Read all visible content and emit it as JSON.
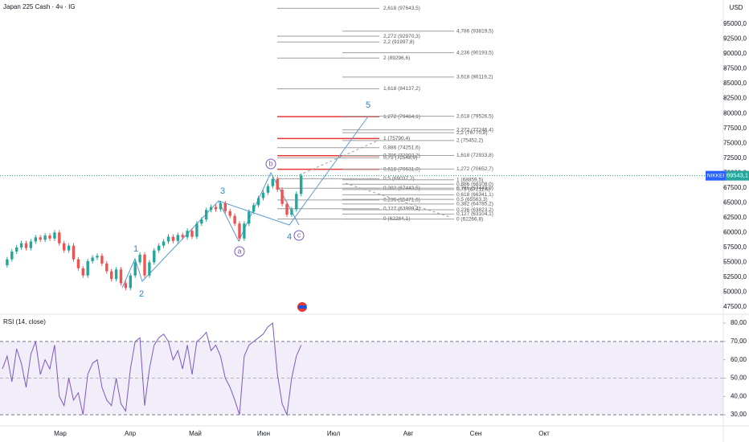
{
  "header": {
    "symbol": "Japan 225 Cash · 4ч · IG",
    "currency": "USD",
    "symbol_tag": "NIKKEI"
  },
  "chart_data": [
    {
      "type": "candlestick",
      "values": [
        54500,
        55500,
        56800,
        57500,
        58200,
        57400,
        58500,
        59200,
        58800,
        59500,
        59000,
        60000,
        58200,
        57000,
        57800,
        55500,
        54000,
        52800,
        55200,
        55800,
        56100,
        54800,
        53500,
        52200,
        53800,
        51500,
        50700,
        52800,
        55000,
        56300,
        52800,
        55000,
        57000,
        57800,
        58500,
        59300,
        58600,
        59600,
        59200,
        60300,
        59300,
        61500,
        62200,
        63800,
        64300,
        63900,
        64900,
        63600,
        62800,
        61500,
        59000,
        61500,
        63500,
        64600,
        65800,
        66700,
        67800,
        69000,
        67200,
        64800,
        63000,
        63900,
        66500,
        69543.1
      ],
      "up_color": "#26a69a",
      "down_color": "#ef5350",
      "ylim": [
        46420,
        99050
      ],
      "yticks": [
        {
          "value": 95000,
          "label": "95000,0"
        },
        {
          "value": 92500,
          "label": "92500,0"
        },
        {
          "value": 90000,
          "label": "90000,0"
        },
        {
          "value": 87500,
          "label": "87500,0"
        },
        {
          "value": 85000,
          "label": "85000,0"
        },
        {
          "value": 82500,
          "label": "82500,0"
        },
        {
          "value": 80000,
          "label": "80000,0"
        },
        {
          "value": 77500,
          "label": "77500,0"
        },
        {
          "value": 75000,
          "label": "75000,0"
        },
        {
          "value": 72500,
          "label": "72500,0"
        },
        {
          "value": 70000,
          "label": "70000,0"
        },
        {
          "value": 67500,
          "label": "67500,0"
        },
        {
          "value": 65000,
          "label": "65000,0"
        },
        {
          "value": 62500,
          "label": "62500,0"
        },
        {
          "value": 60000,
          "label": "60000,0"
        },
        {
          "value": 57500,
          "label": "57500,0"
        },
        {
          "value": 55000,
          "label": "55000,0"
        },
        {
          "value": 52500,
          "label": "52500,0"
        },
        {
          "value": 50000,
          "label": "50000,0"
        },
        {
          "value": 47500,
          "label": "47500,0"
        }
      ],
      "last_price": {
        "value": 69543.1,
        "label": "69543,1"
      },
      "fib_groups": [
        {
          "levels": [
            {
              "value": 97643.5,
              "label": "2,618 (97643,5)",
              "color": "#9e9e9e"
            },
            {
              "value": 92970.3,
              "label": "2,272 (92970,3)",
              "color": "#9e9e9e"
            },
            {
              "value": 91997.8,
              "label": "2,2 (91997,8)",
              "color": "#9e9e9e"
            },
            {
              "value": 89296.6,
              "label": "2 (89296,6)",
              "color": "#9e9e9e"
            },
            {
              "value": 84137.2,
              "label": "1,618 (84137,2)",
              "color": "#9e9e9e"
            },
            {
              "value": 79464.1,
              "label": "1,272 (79464,1)",
              "color": "#e53935"
            },
            {
              "value": 75790.4,
              "label": "1 (75790,4)",
              "color": "#e53935"
            },
            {
              "value": 74251.6,
              "label": "0,886 (74251,6)",
              "color": "#9e9e9e"
            },
            {
              "value": 72902.2,
              "label": "0,786 (72902,2)",
              "color": "#e53935"
            },
            {
              "value": 72548.9,
              "label": "0,75 (72548,9)",
              "color": "#9e9e9e"
            },
            {
              "value": 70631.0,
              "label": "0,618 (70631,0)",
              "color": "#e53935"
            },
            {
              "value": 69037.2,
              "label": "0,5 (69037,2)",
              "color": "#9e9e9e"
            },
            {
              "value": 67443.5,
              "label": "0,382 (67443,5)",
              "color": "#9e9e9e"
            },
            {
              "value": 65471.6,
              "label": "0,236 (65471,6)",
              "color": "#9e9e9e"
            },
            {
              "value": 63999.4,
              "label": "0,127 (63999,4)",
              "color": "#9e9e9e"
            },
            {
              "value": 62284.1,
              "label": "0 (62284,1)",
              "color": "#9e9e9e"
            }
          ]
        },
        {
          "levels": [
            {
              "value": 93819.5,
              "label": "4,786 (93819,5)",
              "color": "#9e9e9e"
            },
            {
              "value": 90193.5,
              "label": "4,236 (90193,5)",
              "color": "#9e9e9e"
            },
            {
              "value": 86119.2,
              "label": "3,618 (86119,2)",
              "color": "#9e9e9e"
            },
            {
              "value": 79526.5,
              "label": "2,618 (79526,5)",
              "color": "#9e9e9e"
            },
            {
              "value": 77246.4,
              "label": "2,272 (77246,4)",
              "color": "#9e9e9e"
            },
            {
              "value": 76770.8,
              "label": "2,2 (76770,8)",
              "color": "#9e9e9e"
            },
            {
              "value": 75452.2,
              "label": "2 (75452,2)",
              "color": "#9e9e9e"
            },
            {
              "value": 72933.8,
              "label": "1,618 (72933,8)",
              "color": "#9e9e9e"
            },
            {
              "value": 70652.7,
              "label": "1,272 (70652,7)",
              "color": "#9e9e9e"
            },
            {
              "value": 68859.5,
              "label": "1 (68859,5)",
              "color": "#9e9e9e"
            },
            {
              "value": 68108.0,
              "label": "0,886 (68108,0)",
              "color": "#9e9e9e"
            },
            {
              "value": 67448.9,
              "label": "0,786 (67448,9)",
              "color": "#9e9e9e"
            },
            {
              "value": 67211.6,
              "label": "0,75 (67211,6)",
              "color": "#9e9e9e"
            },
            {
              "value": 66341.1,
              "label": "0,618 (66341,1)",
              "color": "#9e9e9e"
            },
            {
              "value": 65563.3,
              "label": "0,5 (65563,3)",
              "color": "#9e9e9e"
            },
            {
              "value": 64785.2,
              "label": "0,382 (64785,2)",
              "color": "#9e9e9e"
            },
            {
              "value": 63823.2,
              "label": "0,236 (63823,2)",
              "color": "#9e9e9e"
            },
            {
              "value": 63104.1,
              "label": "0,127 (63104,1)",
              "color": "#9e9e9e"
            },
            {
              "value": 62266.8,
              "label": "0 (62266,8)",
              "color": "#9e9e9e"
            }
          ]
        }
      ],
      "waves": [
        "1",
        "2",
        "3",
        "4",
        "5",
        "a",
        "b",
        "c"
      ],
      "x_labels": [
        "Мар",
        "Апр",
        "Май",
        "Июн",
        "Июл",
        "Авг",
        "Сен",
        "Окт"
      ]
    },
    {
      "type": "line",
      "title": "RSI (14, close)",
      "color": "#7e57c2",
      "values": [
        55,
        62,
        48,
        66,
        58,
        45,
        63,
        70,
        52,
        60,
        55,
        68,
        40,
        35,
        50,
        38,
        42,
        30,
        52,
        58,
        60,
        45,
        38,
        35,
        50,
        36,
        32,
        55,
        70,
        72,
        35,
        55,
        68,
        72,
        74,
        70,
        60,
        65,
        55,
        68,
        52,
        70,
        72,
        75,
        65,
        68,
        62,
        50,
        45,
        38,
        30,
        62,
        68,
        70,
        72,
        74,
        78,
        80,
        52,
        36,
        30,
        50,
        62,
        68
      ],
      "ylim": [
        23.9,
        83.1
      ],
      "yticks": [
        {
          "value": 80,
          "label": "80,00"
        },
        {
          "value": 70,
          "label": "70,00"
        },
        {
          "value": 60,
          "label": "60,00"
        },
        {
          "value": 50,
          "label": "50,00"
        },
        {
          "value": 40,
          "label": "40,00"
        },
        {
          "value": 30,
          "label": "30,00"
        }
      ],
      "band": [
        30,
        70
      ]
    }
  ]
}
